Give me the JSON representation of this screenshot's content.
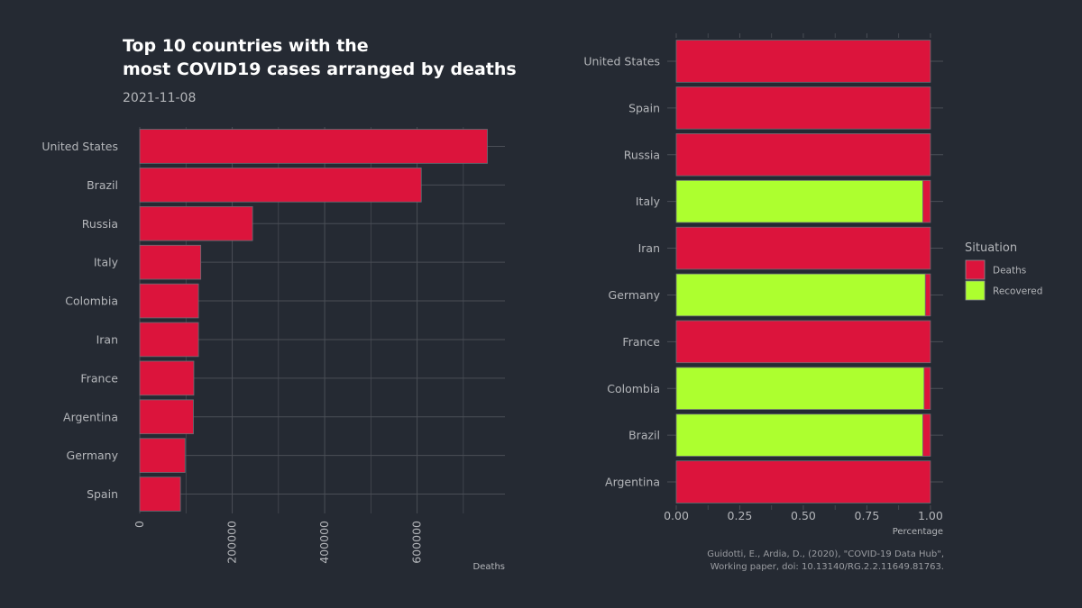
{
  "header": {
    "title_line1": "Top 10 countries with the",
    "title_line2": "most COVID19 cases arranged by deaths",
    "subtitle": "2021-11-08"
  },
  "caption": {
    "line1": "Guidotti, E., Ardia, D., (2020), \"COVID-19 Data Hub\",",
    "line2": "Working paper, doi: 10.13140/RG.2.2.11649.81763."
  },
  "colors": {
    "background": "#252a33",
    "grid": "#4a4e56",
    "deaths": "#dc143c",
    "recovered": "#adff2f"
  },
  "chart_data": [
    {
      "type": "bar",
      "orientation": "horizontal",
      "categories": [
        "United States",
        "Brazil",
        "Russia",
        "Italy",
        "Colombia",
        "Iran",
        "France",
        "Argentina",
        "Germany",
        "Spain"
      ],
      "values": [
        752000,
        609000,
        244000,
        132000,
        127000,
        127000,
        117000,
        116000,
        98000,
        88000
      ],
      "xlabel": "Deaths",
      "xticks": [
        0,
        200000,
        400000,
        600000
      ],
      "xlim": [
        0,
        790000
      ],
      "grid": true
    },
    {
      "type": "bar",
      "orientation": "horizontal",
      "stacked": true,
      "categories": [
        "United States",
        "Spain",
        "Russia",
        "Italy",
        "Iran",
        "Germany",
        "France",
        "Colombia",
        "Brazil",
        "Argentina"
      ],
      "series": [
        {
          "name": "Recovered",
          "values": [
            0,
            0,
            0,
            0.97,
            0,
            0.98,
            0,
            0.975,
            0.97,
            0
          ]
        },
        {
          "name": "Deaths",
          "values": [
            1,
            1,
            1,
            0.03,
            1,
            0.02,
            1,
            0.025,
            0.03,
            1
          ]
        }
      ],
      "xlabel": "Percentage",
      "xticks": [
        "0.00",
        "0.25",
        "0.50",
        "0.75",
        "1.00"
      ],
      "xlim": [
        0,
        1.05
      ],
      "grid": true,
      "legend": {
        "title": "Situation",
        "placement": "right",
        "items": [
          "Deaths",
          "Recovered"
        ]
      }
    }
  ]
}
